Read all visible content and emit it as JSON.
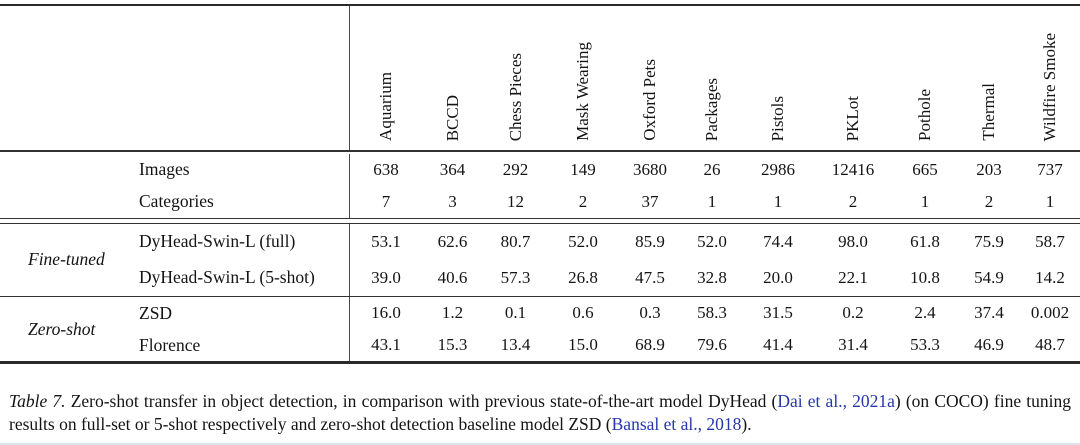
{
  "table": {
    "columns": [
      "Aquarium",
      "BCCD",
      "Chess Pieces",
      "Mask Wearing",
      "Oxford Pets",
      "Packages",
      "Pistols",
      "PKLot",
      "Pothole",
      "Thermal",
      "Wildfire Smoke"
    ],
    "meta_rows": [
      {
        "label": "Images",
        "values": [
          "638",
          "364",
          "292",
          "149",
          "3680",
          "26",
          "2986",
          "12416",
          "665",
          "203",
          "737"
        ]
      },
      {
        "label": "Categories",
        "values": [
          "7",
          "3",
          "12",
          "2",
          "37",
          "1",
          "1",
          "2",
          "1",
          "2",
          "1"
        ]
      }
    ],
    "sections": [
      {
        "name": "Fine-tuned",
        "rows": [
          {
            "label": "DyHead-Swin-L (full)",
            "values": [
              "53.1",
              "62.6",
              "80.7",
              "52.0",
              "85.9",
              "52.0",
              "74.4",
              "98.0",
              "61.8",
              "75.9",
              "58.7"
            ]
          },
          {
            "label": "DyHead-Swin-L (5-shot)",
            "values": [
              "39.0",
              "40.6",
              "57.3",
              "26.8",
              "47.5",
              "32.8",
              "20.0",
              "22.1",
              "10.8",
              "54.9",
              "14.2"
            ]
          }
        ]
      },
      {
        "name": "Zero-shot",
        "rows": [
          {
            "label": "ZSD",
            "values": [
              "16.0",
              "1.2",
              "0.1",
              "0.6",
              "0.3",
              "58.3",
              "31.5",
              "0.2",
              "2.4",
              "37.4",
              "0.002"
            ]
          },
          {
            "label": "Florence",
            "values": [
              "43.1",
              "15.3",
              "13.4",
              "15.0",
              "68.9",
              "79.6",
              "41.4",
              "31.4",
              "53.3",
              "46.9",
              "48.7"
            ]
          }
        ]
      }
    ]
  },
  "caption": {
    "tag": "Table 7.",
    "part1": " Zero-shot transfer in object detection, in comparison with previous state-of-the-art model DyHead (",
    "cite1": "Dai et al., 2021a",
    "part2": ") (on COCO) fine tuning results on full-set or 5-shot respectively and zero-shot detection baseline model ZSD (",
    "cite2": "Bansal et al., 2018",
    "part3": ")."
  },
  "colors": {
    "citation_blue": "#2636ad",
    "rule_dark": "#2a2a2a"
  }
}
